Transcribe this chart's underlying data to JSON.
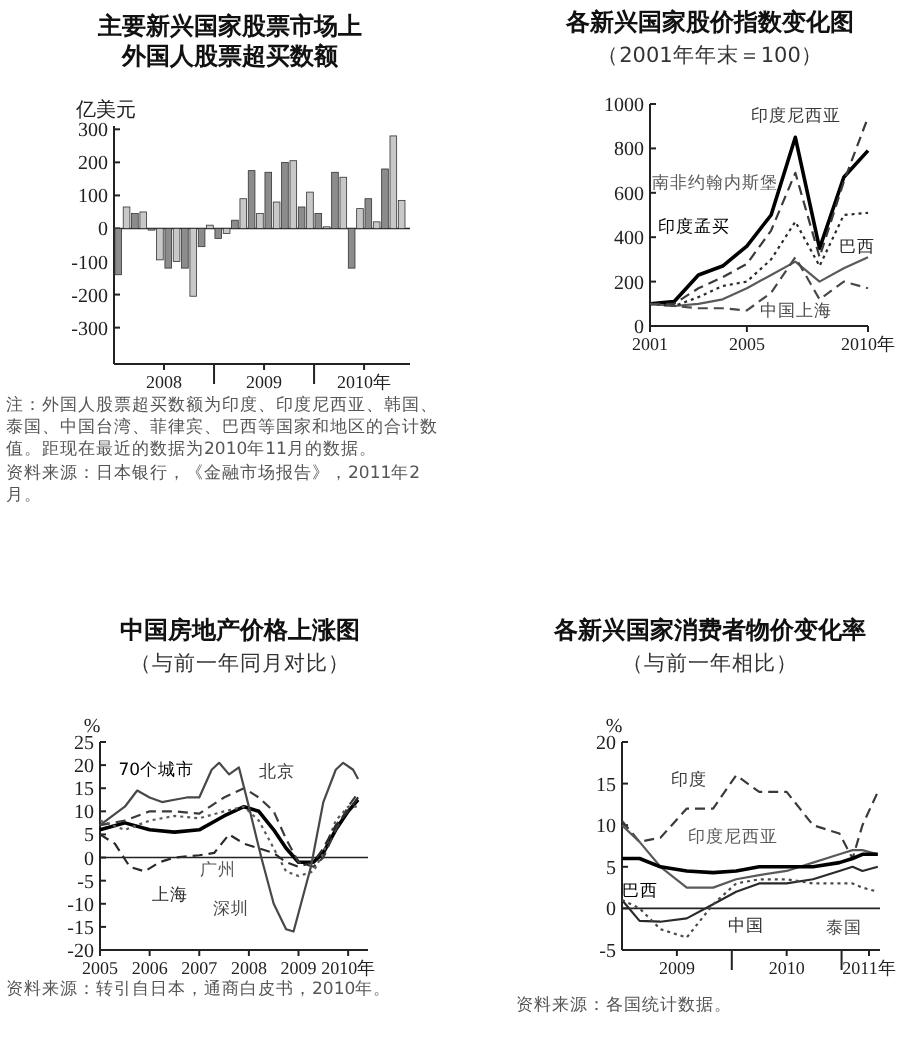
{
  "chart_data": [
    {
      "type": "bar",
      "title": "主要新兴国家股票市场上外国人股票超买数额",
      "ylabel": "亿美元",
      "x": [
        "2008-01",
        "2008-02",
        "2008-03",
        "2008-04",
        "2008-05",
        "2008-06",
        "2008-07",
        "2008-08",
        "2008-09",
        "2008-10",
        "2008-11",
        "2008-12",
        "2009-01",
        "2009-02",
        "2009-03",
        "2009-04",
        "2009-05",
        "2009-06",
        "2009-07",
        "2009-08",
        "2009-09",
        "2009-10",
        "2009-11",
        "2009-12",
        "2010-01",
        "2010-02",
        "2010-03",
        "2010-04",
        "2010-05",
        "2010-06",
        "2010-07",
        "2010-08",
        "2010-09",
        "2010-10",
        "2010-11"
      ],
      "values": [
        -140,
        65,
        45,
        50,
        -5,
        -95,
        -120,
        -100,
        -120,
        -205,
        -55,
        10,
        -30,
        -15,
        25,
        90,
        175,
        45,
        170,
        80,
        200,
        205,
        65,
        110,
        45,
        5,
        170,
        155,
        -120,
        60,
        90,
        20,
        180,
        280,
        85
      ],
      "colors": [
        "#8c8c8c",
        "#c8c8c8",
        "#8c8c8c",
        "#c8c8c8",
        "#8c8c8c",
        "#c8c8c8",
        "#8c8c8c",
        "#c8c8c8",
        "#8c8c8c",
        "#c8c8c8",
        "#8c8c8c",
        "#c8c8c8",
        "#8c8c8c",
        "#c8c8c8",
        "#8c8c8c",
        "#c8c8c8",
        "#8c8c8c",
        "#c8c8c8",
        "#8c8c8c",
        "#c8c8c8",
        "#8c8c8c",
        "#c8c8c8",
        "#8c8c8c",
        "#c8c8c8",
        "#8c8c8c",
        "#c8c8c8",
        "#8c8c8c",
        "#c8c8c8",
        "#8c8c8c",
        "#c8c8c8",
        "#8c8c8c",
        "#c8c8c8",
        "#8c8c8c",
        "#c8c8c8",
        "#c8c8c8"
      ],
      "xlim": [
        "2007-12-16",
        "2010-12-01"
      ],
      "xticks": [
        {
          "value": "2008-06-16",
          "label": "2008"
        },
        {
          "value": "2008-12-16",
          "label": null
        },
        {
          "value": "2009-06-16",
          "label": "2009"
        },
        {
          "value": "2009-12-16",
          "label": null
        },
        {
          "value": "2010-06-16",
          "label": "2010年"
        }
      ],
      "ylim": [
        -410,
        310
      ],
      "yticks": [
        -300,
        -200,
        -100,
        0,
        100,
        200,
        300
      ],
      "ref_lines": [
        {
          "axis": "y",
          "value": 0
        }
      ],
      "annotations": [
        "注：外国人股票超买数额为印度、印度尼西亚、韩国、泰国、中国台湾、菲律宾、巴西等国家和地区的合计数值。距现在最近的数据为2010年11月的数据。",
        "资料来源：日本银行，《金融市场报告》，2011年2月。"
      ]
    },
    {
      "type": "line",
      "title": "各新兴国家股价指数变化图",
      "subtitle": "（2001年年末＝100）",
      "x": [
        2001,
        2002,
        2003,
        2004,
        2005,
        2006,
        2007,
        2008,
        2009,
        2010
      ],
      "xlim": [
        2001,
        2010
      ],
      "xticks": [
        2001,
        2005,
        {
          "value": 2010,
          "label": "2010年"
        }
      ],
      "ylim": [
        0,
        1000
      ],
      "yticks": [
        0,
        200,
        400,
        600,
        800,
        1000
      ],
      "series": [
        {
          "name": "印度孟买",
          "color": "#000000",
          "line_style": "solid",
          "values": [
            100,
            110,
            230,
            270,
            360,
            500,
            850,
            350,
            670,
            790
          ]
        },
        {
          "name": "印度尼西亚",
          "color": "#3a3a3a",
          "line_style": "dashed",
          "values": [
            100,
            100,
            170,
            220,
            280,
            430,
            690,
            310,
            650,
            940
          ]
        },
        {
          "name": "南非约翰内斯堡",
          "color": "#5a5a5a",
          "line_style": "solid",
          "values": [
            100,
            90,
            100,
            120,
            170,
            230,
            290,
            200,
            260,
            310
          ]
        },
        {
          "name": "巴西",
          "color": "#2a2a2a",
          "line_style": "dotted",
          "values": [
            100,
            90,
            130,
            180,
            200,
            300,
            470,
            270,
            500,
            510
          ]
        },
        {
          "name": "中国上海",
          "color": "#484848",
          "line_style": "dashed",
          "values": [
            100,
            90,
            80,
            80,
            70,
            150,
            310,
            120,
            200,
            170
          ]
        }
      ]
    },
    {
      "type": "line",
      "title": "中国房地产价格上涨图",
      "subtitle": "（与前一年同月对比）",
      "ylabel": "%",
      "xlim": [
        2005,
        2010.4
      ],
      "xticks": [
        2005,
        2006,
        2007,
        2008,
        2009,
        {
          "value": 2010,
          "label": "2010年"
        }
      ],
      "ylim": [
        -20,
        25
      ],
      "yticks": [
        -20,
        -15,
        -10,
        -5,
        0,
        5,
        10,
        15,
        20,
        25
      ],
      "ref_lines": [
        {
          "axis": "y",
          "value": 0
        }
      ],
      "series": [
        {
          "name": "70个城市",
          "color": "#000000",
          "line_style": "solid",
          "x": [
            2005,
            2005.5,
            2006,
            2006.5,
            2007,
            2007.5,
            2007.9,
            2008.2,
            2008.5,
            2008.75,
            2009,
            2009.3,
            2009.5,
            2009.75,
            2010,
            2010.2
          ],
          "values": [
            6,
            7.5,
            6,
            5.5,
            6,
            9,
            11,
            10,
            6,
            2,
            -1,
            -1,
            1,
            6,
            10,
            12.5
          ]
        },
        {
          "name": "北京",
          "color": "#3a3a3a",
          "line_style": "dashed",
          "x": [
            2005,
            2005.5,
            2006,
            2006.5,
            2007,
            2007.5,
            2007.9,
            2008.2,
            2008.5,
            2008.75,
            2009,
            2009.3,
            2009.5,
            2009.75,
            2010,
            2010.2
          ],
          "values": [
            7,
            8,
            10,
            10,
            9.5,
            13,
            15,
            13,
            10,
            4,
            -1,
            -2,
            0,
            6,
            11,
            14
          ]
        },
        {
          "name": "广州",
          "color": "#5a5a5a",
          "line_style": "dotted",
          "x": [
            2005,
            2005.5,
            2006,
            2006.5,
            2007,
            2007.5,
            2007.9,
            2008.2,
            2008.5,
            2008.75,
            2009,
            2009.3,
            2009.5,
            2009.75,
            2010,
            2010.2
          ],
          "values": [
            8,
            6,
            8,
            9,
            8.5,
            10,
            11,
            8,
            2,
            -3,
            -4,
            -3,
            1,
            8,
            11,
            11
          ]
        },
        {
          "name": "上海",
          "color": "#2a2a2a",
          "line_style": "dashed",
          "x": [
            2005,
            2005.3,
            2005.6,
            2005.9,
            2006.2,
            2006.5,
            2007,
            2007.3,
            2007.6,
            2007.9,
            2008.2,
            2008.5,
            2008.75,
            2009,
            2009.3,
            2009.5,
            2009.75,
            2010,
            2010.2
          ],
          "values": [
            5,
            3,
            -2,
            -3,
            -1,
            0,
            0.5,
            1,
            5,
            3,
            2,
            1,
            -1,
            -2,
            -1,
            2,
            7,
            10,
            13
          ]
        },
        {
          "name": "深圳",
          "color": "#484848",
          "line_style": "solid",
          "x": [
            2005,
            2005.25,
            2005.5,
            2005.75,
            2006,
            2006.25,
            2006.5,
            2006.75,
            2007,
            2007.25,
            2007.4,
            2007.6,
            2007.8,
            2008,
            2008.25,
            2008.5,
            2008.75,
            2008.9,
            2009,
            2009.25,
            2009.5,
            2009.75,
            2009.9,
            2010.1,
            2010.2
          ],
          "values": [
            7,
            9,
            11,
            14.5,
            13,
            12,
            12.5,
            13,
            13,
            19,
            20.5,
            18,
            19.5,
            11,
            0,
            -10,
            -15.5,
            -16,
            -12,
            -2,
            12,
            19,
            20.5,
            19,
            17
          ]
        }
      ],
      "annotations": [
        "资料来源：转引自日本，通商白皮书，2010年。"
      ]
    },
    {
      "type": "line",
      "title": "各新兴国家消费者物价变化率",
      "subtitle": "（与前一年相比）",
      "ylabel": "%",
      "x": [
        2009,
        2009.16,
        2009.35,
        2009.59,
        2009.83,
        2010.04,
        2010.25,
        2010.5,
        2010.74,
        2010.98,
        2011.1,
        2011.19,
        2011.33
      ],
      "xlim": [
        2009,
        2011.35
      ],
      "xticks": [
        {
          "value": 2009.5,
          "label": "2009"
        },
        {
          "value": 2010,
          "label": null
        },
        {
          "value": 2010.5,
          "label": "2010"
        },
        {
          "value": 2011,
          "label": null
        },
        {
          "value": 2011.25,
          "label": "2011年"
        }
      ],
      "ylim": [
        -5,
        20
      ],
      "yticks": [
        -5,
        0,
        5,
        10,
        15,
        20
      ],
      "ref_lines": [
        {
          "axis": "y",
          "value": 0
        }
      ],
      "series": [
        {
          "name": "印度",
          "color": "#3a3a3a",
          "line_style": "dashed",
          "values": [
            10.5,
            8,
            8.5,
            12,
            12,
            16,
            14,
            14,
            10,
            9,
            6,
            10,
            14
          ]
        },
        {
          "name": "印度尼西亚",
          "color": "#5a5a5a",
          "line_style": "solid",
          "values": [
            10,
            8,
            5,
            2.5,
            2.5,
            3.5,
            4,
            4.5,
            5.5,
            6.5,
            7,
            7,
            6.5
          ]
        },
        {
          "name": "巴西",
          "color": "#000000",
          "line_style": "solid",
          "values": [
            6,
            6,
            5,
            4.5,
            4.3,
            4.5,
            5,
            5,
            5,
            5.5,
            6,
            6.5,
            6.5
          ]
        },
        {
          "name": "中国",
          "color": "#2a2a2a",
          "line_style": "solid",
          "values": [
            1,
            -1.5,
            -1.6,
            -1.2,
            0.5,
            2,
            3,
            3,
            3.5,
            4.5,
            5,
            4.5,
            5
          ]
        },
        {
          "name": "泰国",
          "color": "#484848",
          "line_style": "dotted",
          "values": [
            1,
            0,
            -2.5,
            -3.5,
            0.5,
            3,
            3.5,
            3.5,
            3,
            3,
            3,
            2.5,
            2
          ]
        }
      ],
      "annotations": [
        "资料来源：各国统计数据。"
      ]
    }
  ]
}
